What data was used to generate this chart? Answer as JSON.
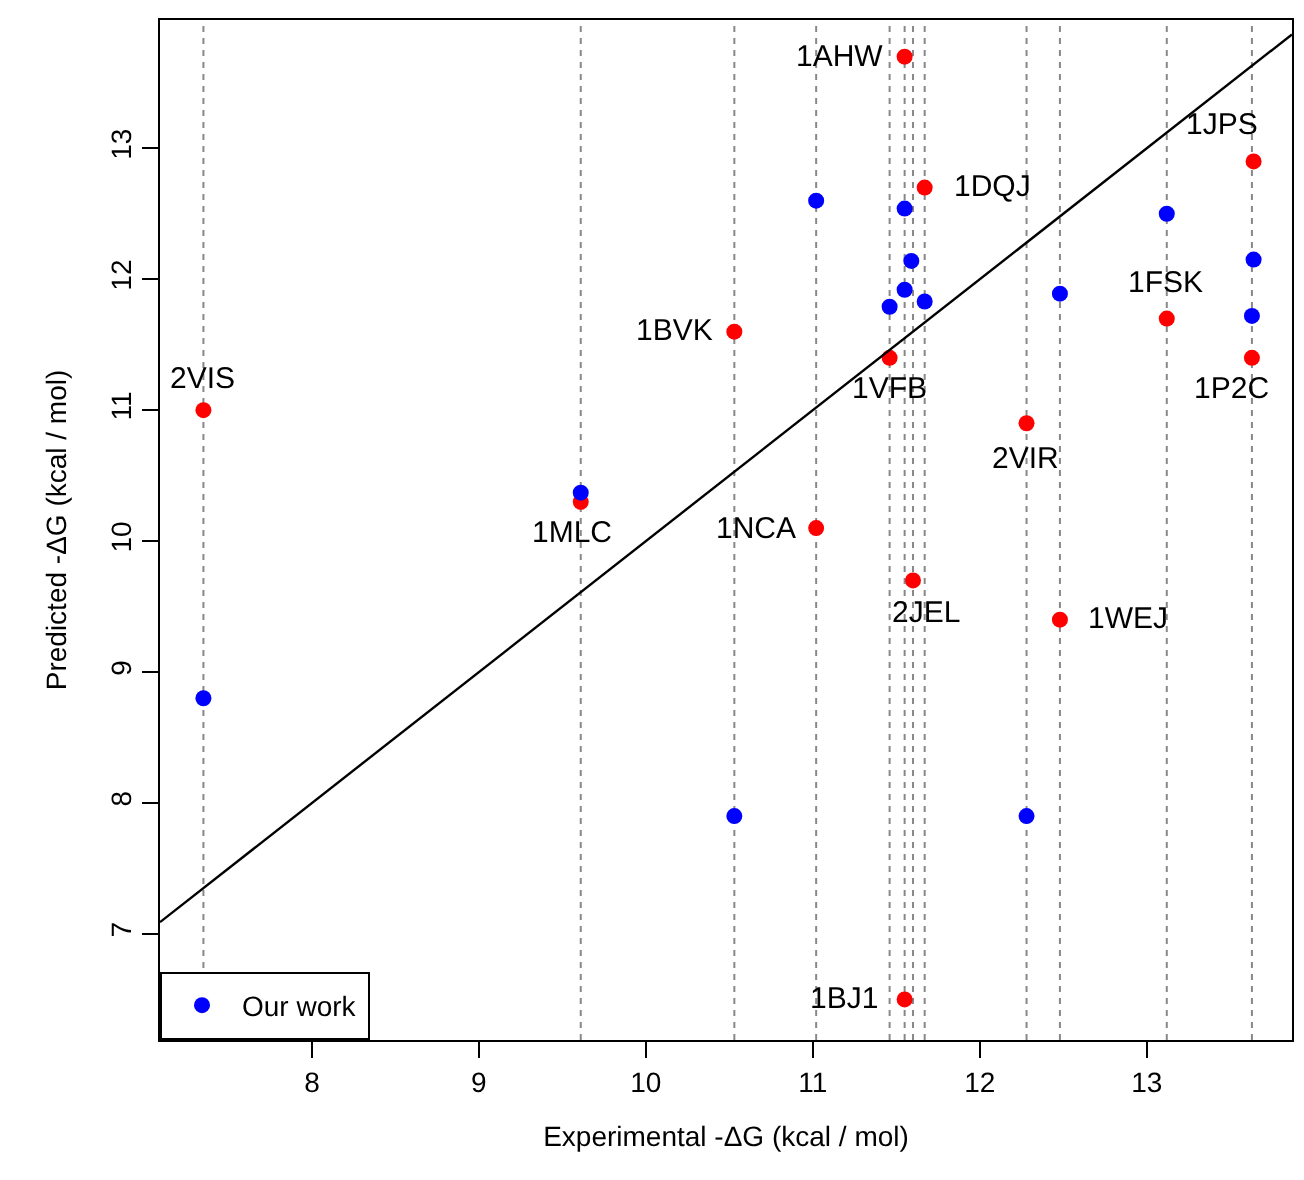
{
  "chart_data": {
    "type": "scatter",
    "xlabel": "Experimental -ΔG (kcal / mol)",
    "ylabel": "Predicted -ΔG (kcal / mol)",
    "xlim": [
      7.09,
      13.87
    ],
    "ylim": [
      6.19,
      13.98
    ],
    "xticks": [
      8,
      9,
      10,
      11,
      12,
      13
    ],
    "yticks": [
      7,
      8,
      9,
      10,
      11,
      12,
      13
    ],
    "grid": false,
    "legend": "bottom left",
    "marker": "circle",
    "series": [
      {
        "color": "#ff0000",
        "x": [
          7.35,
          9.61,
          10.53,
          11.02,
          11.55,
          11.67,
          11.46,
          11.6,
          11.55,
          12.28,
          12.48,
          13.12,
          13.64,
          13.63
        ],
        "values": [
          11.0,
          10.3,
          11.6,
          10.1,
          13.7,
          12.7,
          11.4,
          9.7,
          6.5,
          10.9,
          9.4,
          11.7,
          12.9,
          11.4
        ]
      },
      {
        "name": "Our work",
        "color": "#0000ff",
        "x": [
          7.35,
          9.61,
          10.53,
          11.02,
          11.55,
          11.59,
          11.55,
          11.46,
          11.67,
          12.48,
          12.28,
          13.12,
          13.64,
          13.63
        ],
        "values": [
          8.8,
          10.37,
          7.9,
          12.6,
          12.54,
          12.14,
          11.92,
          11.79,
          11.83,
          11.89,
          7.9,
          12.5,
          12.15,
          11.72
        ]
      },
      {
        "type": "line",
        "color": "#000000",
        "marker": "none",
        "x": [
          7.09,
          13.87
        ],
        "values": [
          7.09,
          13.87
        ]
      }
    ],
    "ref_lines": [
      {
        "axis": "x",
        "value": 7.35,
        "color": "#888888",
        "line_style": "dotted"
      },
      {
        "axis": "x",
        "value": 9.61,
        "color": "#888888",
        "line_style": "dotted"
      },
      {
        "axis": "x",
        "value": 10.53,
        "color": "#888888",
        "line_style": "dotted"
      },
      {
        "axis": "x",
        "value": 11.02,
        "color": "#888888",
        "line_style": "dotted"
      },
      {
        "axis": "x",
        "value": 11.46,
        "color": "#888888",
        "line_style": "dotted"
      },
      {
        "axis": "x",
        "value": 11.55,
        "color": "#888888",
        "line_style": "dotted"
      },
      {
        "axis": "x",
        "value": 11.6,
        "color": "#888888",
        "line_style": "dotted"
      },
      {
        "axis": "x",
        "value": 11.67,
        "color": "#888888",
        "line_style": "dotted"
      },
      {
        "axis": "x",
        "value": 12.28,
        "color": "#888888",
        "line_style": "dotted"
      },
      {
        "axis": "x",
        "value": 12.48,
        "color": "#888888",
        "line_style": "dotted"
      },
      {
        "axis": "x",
        "value": 13.12,
        "color": "#888888",
        "line_style": "dotted"
      },
      {
        "axis": "x",
        "value": 13.63,
        "color": "#888888",
        "line_style": "dotted"
      }
    ],
    "annotations": [
      {
        "text": "2VIS",
        "x": 7.35,
        "y": 11.0
      },
      {
        "text": "1MLC",
        "x": 9.61,
        "y": 10.3
      },
      {
        "text": "1BVK",
        "x": 10.53,
        "y": 11.6
      },
      {
        "text": "1NCA",
        "x": 11.02,
        "y": 10.1
      },
      {
        "text": "1AHW",
        "x": 11.55,
        "y": 13.7
      },
      {
        "text": "1DQJ",
        "x": 11.67,
        "y": 12.7
      },
      {
        "text": "1VFB",
        "x": 11.46,
        "y": 11.4
      },
      {
        "text": "2JEL",
        "x": 11.6,
        "y": 9.7
      },
      {
        "text": "1BJ1",
        "x": 11.55,
        "y": 6.5
      },
      {
        "text": "2VIR",
        "x": 12.28,
        "y": 10.9
      },
      {
        "text": "1WEJ",
        "x": 12.48,
        "y": 9.4
      },
      {
        "text": "1FSK",
        "x": 13.12,
        "y": 11.7
      },
      {
        "text": "1JPS",
        "x": 13.64,
        "y": 12.9
      },
      {
        "text": "1P2C",
        "x": 13.63,
        "y": 11.4
      }
    ]
  }
}
